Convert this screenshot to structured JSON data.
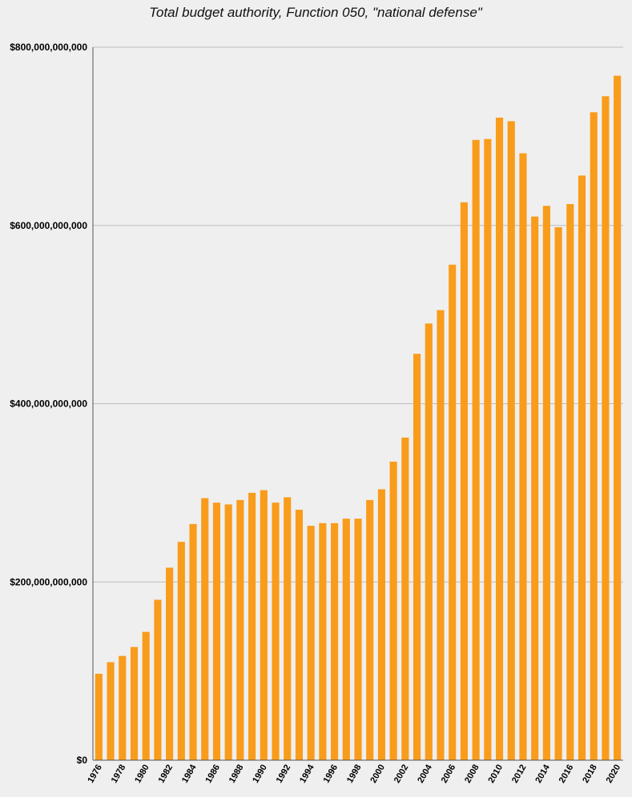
{
  "chart_data": {
    "type": "bar",
    "title": "Total budget authority, Function 050, \"national defense\"",
    "xlabel": "",
    "ylabel": "",
    "ylim": [
      0,
      800000000000
    ],
    "yticks": [
      0,
      200000000000,
      400000000000,
      600000000000,
      800000000000
    ],
    "ytick_labels": [
      "$0",
      "$200,000,000,000",
      "$400,000,000,000",
      "$600,000,000,000",
      "$800,000,000,000"
    ],
    "grid": true,
    "legend": "none",
    "bar_color": "#f99c1b",
    "categories": [
      "1976",
      "1977",
      "1978",
      "1979",
      "1980",
      "1981",
      "1982",
      "1983",
      "1984",
      "1985",
      "1986",
      "1987",
      "1988",
      "1989",
      "1990",
      "1991",
      "1992",
      "1993",
      "1994",
      "1995",
      "1996",
      "1997",
      "1998",
      "1999",
      "2000",
      "2001",
      "2002",
      "2003",
      "2004",
      "2005",
      "2006",
      "2007",
      "2008",
      "2009",
      "2010",
      "2011",
      "2012",
      "2013",
      "2014",
      "2015",
      "2016",
      "2017",
      "2018",
      "2019",
      "2020"
    ],
    "xtick_labels": [
      "1976",
      "",
      "1978",
      "",
      "1980",
      "",
      "1982",
      "",
      "1984",
      "",
      "1986",
      "",
      "1988",
      "",
      "1990",
      "",
      "1992",
      "",
      "1994",
      "",
      "1996",
      "",
      "1998",
      "",
      "2000",
      "",
      "2002",
      "",
      "2004",
      "",
      "2006",
      "",
      "2008",
      "",
      "2010",
      "",
      "2012",
      "",
      "2014",
      "",
      "2016",
      "",
      "2018",
      "",
      "2020"
    ],
    "values": [
      97000000000,
      110000000000,
      117000000000,
      127000000000,
      144000000000,
      180000000000,
      216000000000,
      245000000000,
      265000000000,
      294000000000,
      289000000000,
      287000000000,
      292000000000,
      300000000000,
      303000000000,
      289000000000,
      295000000000,
      281000000000,
      263000000000,
      266000000000,
      266000000000,
      271000000000,
      271000000000,
      292000000000,
      304000000000,
      335000000000,
      362000000000,
      456000000000,
      490000000000,
      505000000000,
      556000000000,
      626000000000,
      696000000000,
      697000000000,
      721000000000,
      717000000000,
      681000000000,
      610000000000,
      622000000000,
      598000000000,
      624000000000,
      656000000000,
      727000000000,
      745000000000,
      768000000000
    ]
  }
}
